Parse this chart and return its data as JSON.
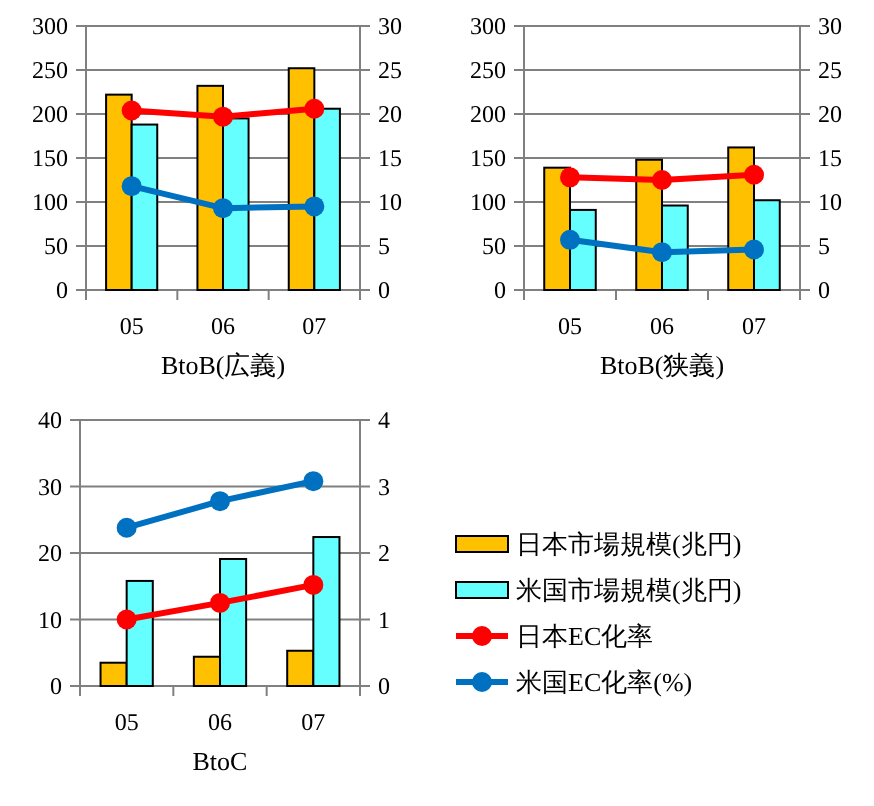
{
  "chart_data": [
    {
      "type": "bar",
      "xlabel": "BtoB(広義)",
      "categories": [
        "05",
        "06",
        "07"
      ],
      "ylim": [
        0,
        300
      ],
      "yticks": [
        0,
        50,
        100,
        150,
        200,
        250,
        300
      ],
      "y2lim": [
        0,
        30
      ],
      "y2ticks": [
        0,
        5,
        10,
        15,
        20,
        25,
        30
      ],
      "grid": "y",
      "legend": false,
      "marker": "circle",
      "series": [
        {
          "color": "#ffc000",
          "values": [
            222,
            232,
            252
          ]
        },
        {
          "color": "#66ffff",
          "values": [
            188,
            195,
            206
          ]
        },
        {
          "type": "line",
          "axis": "y2",
          "color": "#ff0000",
          "values": [
            20.4,
            19.7,
            20.6
          ]
        },
        {
          "type": "line",
          "axis": "y2",
          "color": "#0070c0",
          "values": [
            11.8,
            9.3,
            9.5
          ]
        }
      ]
    },
    {
      "type": "bar",
      "xlabel": "BtoB(狭義)",
      "categories": [
        "05",
        "06",
        "07"
      ],
      "ylim": [
        0,
        300
      ],
      "yticks": [
        0,
        50,
        100,
        150,
        200,
        250,
        300
      ],
      "y2lim": [
        0,
        30
      ],
      "y2ticks": [
        0,
        5,
        10,
        15,
        20,
        25,
        30
      ],
      "grid": "y",
      "legend": false,
      "marker": "circle",
      "series": [
        {
          "color": "#ffc000",
          "values": [
            139,
            148,
            162
          ]
        },
        {
          "color": "#66ffff",
          "values": [
            91,
            96,
            102
          ]
        },
        {
          "type": "line",
          "axis": "y2",
          "color": "#ff0000",
          "values": [
            12.8,
            12.5,
            13.1
          ]
        },
        {
          "type": "line",
          "axis": "y2",
          "color": "#0070c0",
          "values": [
            5.7,
            4.3,
            4.6
          ]
        }
      ]
    },
    {
      "type": "bar",
      "xlabel": "BtoC",
      "categories": [
        "05",
        "06",
        "07"
      ],
      "ylim": [
        0,
        40
      ],
      "yticks": [
        0,
        10,
        20,
        30,
        40
      ],
      "y2lim": [
        0,
        4
      ],
      "y2ticks": [
        0,
        1,
        2,
        3,
        4
      ],
      "grid": "y",
      "legend": "right",
      "marker": "circle",
      "series": [
        {
          "name": "日本市場規模(兆円)",
          "color": "#ffc000",
          "values": [
            3.5,
            4.4,
            5.3
          ]
        },
        {
          "name": "米国市場規模(兆円)",
          "color": "#66ffff",
          "values": [
            15.8,
            19.1,
            22.4
          ]
        },
        {
          "name": "日本EC化率",
          "type": "line",
          "axis": "y2",
          "color": "#ff0000",
          "values": [
            1.0,
            1.25,
            1.52
          ]
        },
        {
          "name": "米国EC化率(%)",
          "type": "line",
          "axis": "y2",
          "color": "#0070c0",
          "values": [
            2.38,
            2.78,
            3.08
          ]
        }
      ]
    }
  ]
}
